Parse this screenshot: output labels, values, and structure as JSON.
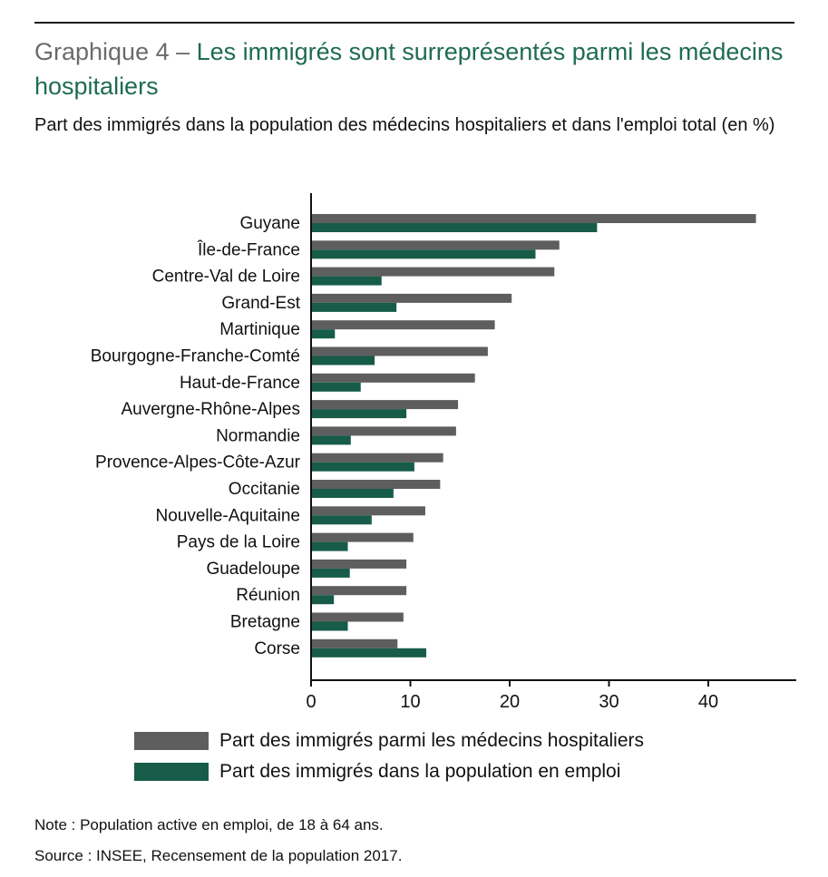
{
  "header": {
    "title_prefix": "Graphique 4 – ",
    "title_main": "Les immigrés sont surreprésentés parmi les médecins hospitaliers",
    "subtitle": "Part des immigrés dans la population des médecins hospitaliers et dans l'emploi total (en %)"
  },
  "colors": {
    "series_doctors": "#5e5e5e",
    "series_employment": "#175c48",
    "title_accent": "#1f6b52"
  },
  "chart_data": {
    "type": "bar",
    "orientation": "horizontal",
    "categories": [
      "Guyane",
      "Île-de-France",
      "Centre-Val de Loire",
      "Grand-Est",
      "Martinique",
      "Bourgogne-Franche-Comté",
      "Haut-de-France",
      "Auvergne-Rhône-Alpes",
      "Normandie",
      "Provence-Alpes-Côte-Azur",
      "Occitanie",
      "Nouvelle-Aquitaine",
      "Pays de la Loire",
      "Guadeloupe",
      "Réunion",
      "Bretagne",
      "Corse"
    ],
    "series": [
      {
        "name": "Part des immigrés parmi les médecins hospitaliers",
        "values": [
          44.8,
          25.0,
          24.5,
          20.2,
          18.5,
          17.8,
          16.5,
          14.8,
          14.6,
          13.3,
          13.0,
          11.5,
          10.3,
          9.6,
          9.6,
          9.3,
          8.7
        ]
      },
      {
        "name": "Part des immigrés dans la population en emploi",
        "values": [
          28.8,
          22.6,
          7.1,
          8.6,
          2.4,
          6.4,
          5.0,
          9.6,
          4.0,
          10.4,
          8.3,
          6.1,
          3.7,
          3.9,
          2.3,
          3.7,
          11.6
        ]
      }
    ],
    "xlim": [
      0,
      49
    ],
    "xticks": [
      0,
      10,
      20,
      30,
      40
    ],
    "xlabel": "",
    "ylabel": "",
    "grid": false,
    "legend_position": "bottom"
  },
  "footer": {
    "note": "Note : Population active en emploi, de 18 à 64 ans.",
    "source": "Source : INSEE, Recensement de la population 2017."
  }
}
